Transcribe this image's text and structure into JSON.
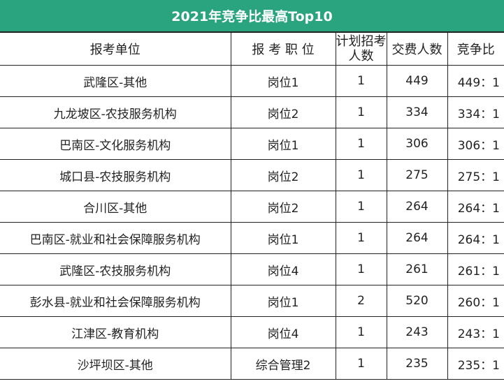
{
  "title": "2021年竞争比最高Top10",
  "colors": {
    "header_bg": "#2aa37f",
    "header_text": "#ffffff"
  },
  "columns": [
    "报考单位",
    "报 考 职 位",
    "计划招考人数",
    "交费人数",
    "竞争比"
  ],
  "rows": [
    {
      "unit": "武隆区-其他",
      "position": "岗位1",
      "plan": "1",
      "paid": "449",
      "ratio": "449：1"
    },
    {
      "unit": "九龙坡区-农技服务机构",
      "position": "岗位2",
      "plan": "1",
      "paid": "334",
      "ratio": "334：1"
    },
    {
      "unit": "巴南区-文化服务机构",
      "position": "岗位1",
      "plan": "1",
      "paid": "306",
      "ratio": "306：1"
    },
    {
      "unit": "城口县-农技服务机构",
      "position": "岗位2",
      "plan": "1",
      "paid": "275",
      "ratio": "275：1"
    },
    {
      "unit": "合川区-其他",
      "position": "岗位2",
      "plan": "1",
      "paid": "264",
      "ratio": "264：1"
    },
    {
      "unit": "巴南区-就业和社会保障服务机构",
      "position": "岗位1",
      "plan": "1",
      "paid": "264",
      "ratio": "264：1"
    },
    {
      "unit": "武隆区-农技服务机构",
      "position": "岗位4",
      "plan": "1",
      "paid": "261",
      "ratio": "261：1"
    },
    {
      "unit": "彭水县-就业和社会保障服务机构",
      "position": "岗位1",
      "plan": "2",
      "paid": "520",
      "ratio": "260：1"
    },
    {
      "unit": "江津区-教育机构",
      "position": "岗位4",
      "plan": "1",
      "paid": "243",
      "ratio": "243：1"
    },
    {
      "unit": "沙坪坝区-其他",
      "position": "综合管理2",
      "plan": "1",
      "paid": "235",
      "ratio": "235：1"
    }
  ]
}
